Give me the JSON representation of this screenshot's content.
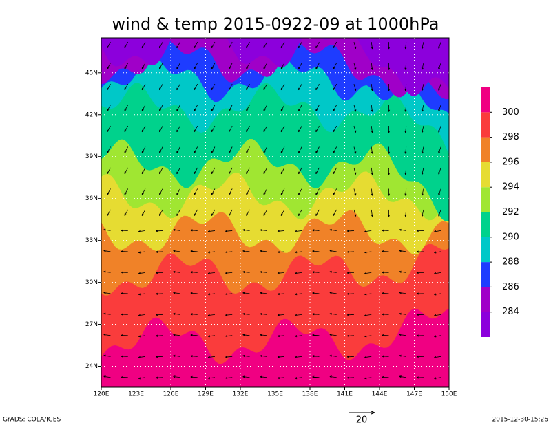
{
  "chart_data": {
    "type": "map",
    "title": "wind & temp 2015-0922-09 at 1000hPa",
    "xlim": [
      120,
      150
    ],
    "ylim": [
      22.5,
      47.5
    ],
    "xticks": [
      {
        "value": 120,
        "label": "120E"
      },
      {
        "value": 123,
        "label": "123E"
      },
      {
        "value": 126,
        "label": "126E"
      },
      {
        "value": 129,
        "label": "129E"
      },
      {
        "value": 132,
        "label": "132E"
      },
      {
        "value": 135,
        "label": "135E"
      },
      {
        "value": 138,
        "label": "138E"
      },
      {
        "value": 141,
        "label": "141E"
      },
      {
        "value": 144,
        "label": "144E"
      },
      {
        "value": 147,
        "label": "147E"
      },
      {
        "value": 150,
        "label": "150E"
      }
    ],
    "yticks": [
      {
        "value": 24,
        "label": "24N"
      },
      {
        "value": 27,
        "label": "27N"
      },
      {
        "value": 30,
        "label": "30N"
      },
      {
        "value": 33,
        "label": "33N"
      },
      {
        "value": 36,
        "label": "36N"
      },
      {
        "value": 39,
        "label": "39N"
      },
      {
        "value": 42,
        "label": "42N"
      },
      {
        "value": 45,
        "label": "45N"
      }
    ],
    "grid": true,
    "levels": [
      284,
      286,
      288,
      290,
      292,
      294,
      296,
      298,
      300
    ],
    "colors": [
      "#8c00dc",
      "#a000c8",
      "#1e3cff",
      "#00c8c8",
      "#00d28c",
      "#a0e632",
      "#e6dc32",
      "#f08228",
      "#fa3c3c",
      "#f00082"
    ],
    "vector_scale": "20",
    "footer_left": "GrADS: COLA/IGES",
    "footer_right": "2015-12-30-15:26"
  }
}
